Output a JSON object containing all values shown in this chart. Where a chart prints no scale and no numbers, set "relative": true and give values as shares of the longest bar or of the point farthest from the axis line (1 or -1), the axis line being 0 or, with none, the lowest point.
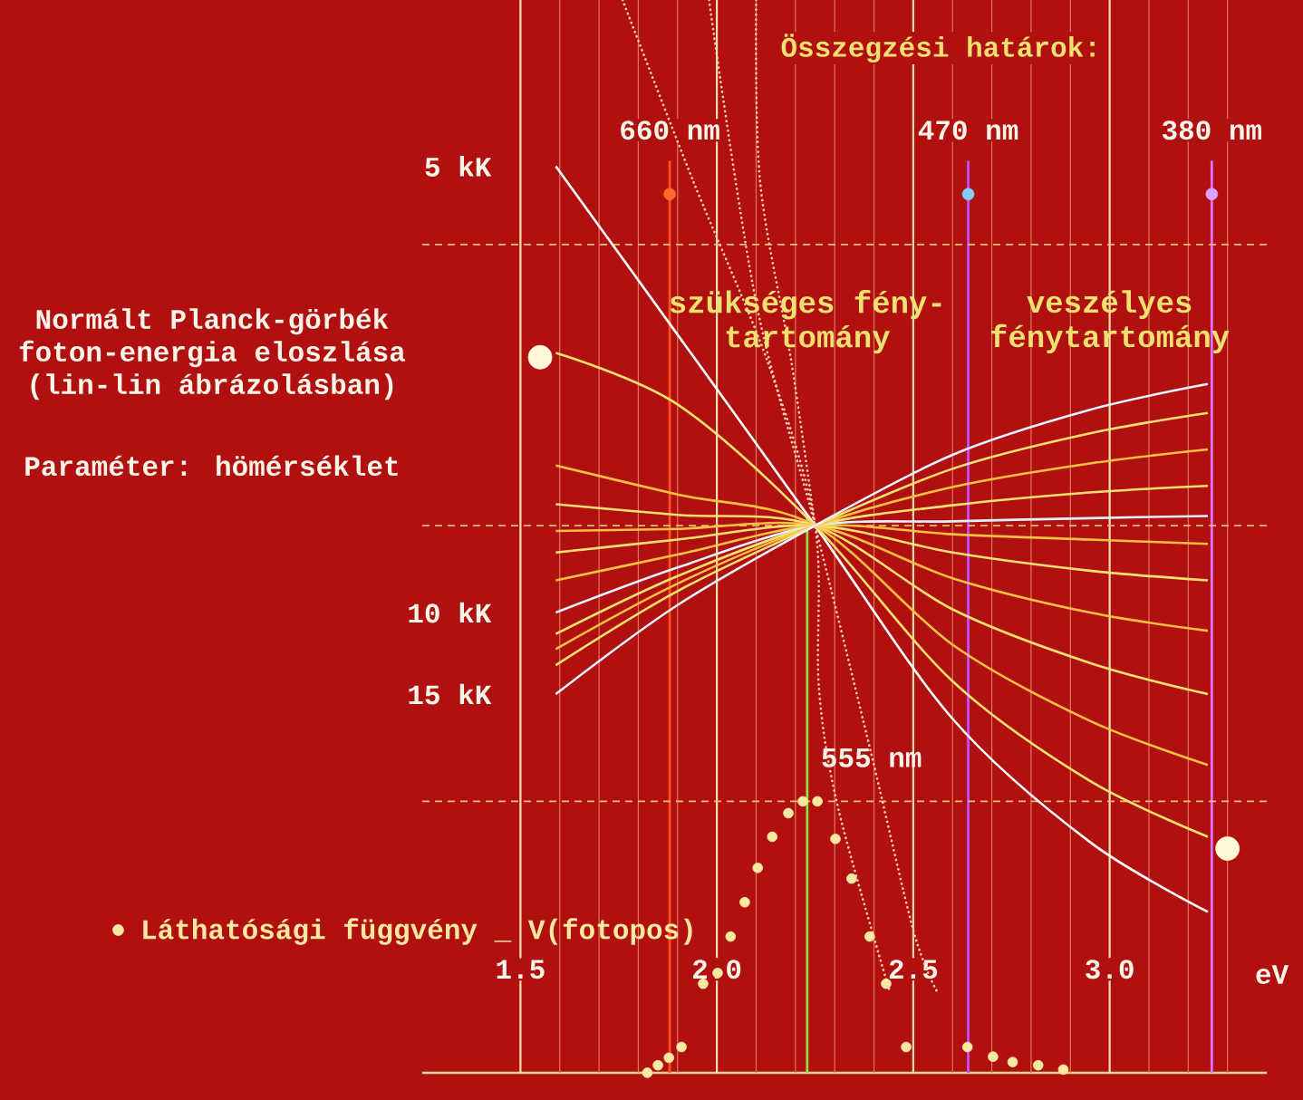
{
  "chart_data": {
    "type": "line",
    "title": "Normált Planck-görbék foton-energia eloszlása (lin-lin ábrázolásban)",
    "subtitle": "Paraméter: hömérséklet",
    "xlabel": "eV",
    "annotations": [
      "Összegzési határok:",
      "szükséges fény- tartomány",
      "veszélyes fénytartomány"
    ],
    "relative": true,
    "grid": "x",
    "xlim": [
      1.25,
      3.4
    ],
    "xticks": [
      1.5,
      {
        "value": 1.6,
        "label": null
      },
      {
        "value": 1.7,
        "label": null
      },
      {
        "value": 1.8,
        "label": null
      },
      {
        "value": 1.9,
        "label": null
      },
      {
        "value": 2,
        "label": "2.0"
      },
      {
        "value": 2.1,
        "label": null
      },
      {
        "value": 2.2,
        "label": null
      },
      {
        "value": 2.3,
        "label": null
      },
      {
        "value": 2.4,
        "label": null
      },
      2.5,
      {
        "value": 2.6,
        "label": null
      },
      {
        "value": 2.7,
        "label": null
      },
      {
        "value": 2.8,
        "label": null
      },
      {
        "value": 2.9,
        "label": null
      },
      {
        "value": 3,
        "label": "3.0"
      },
      {
        "value": 3.1,
        "label": null
      },
      {
        "value": 3.2,
        "label": null
      },
      {
        "value": 3.3,
        "label": null
      }
    ],
    "x": [
      1.59,
      1.9,
      2.25,
      2.6,
      2.95,
      3.25
    ],
    "series": [
      {
        "name": "5 kK",
        "color": "#ffffff",
        "values": [
          0.845,
          0.688,
          0.51,
          0.33,
          0.215,
          0.15
        ]
      },
      {
        "color": "#f8e070",
        "values": [
          0.671,
          0.623,
          0.51,
          0.365,
          0.272,
          0.22
        ]
      },
      {
        "color": "#f8c040",
        "values": [
          0.566,
          0.539,
          0.51,
          0.399,
          0.328,
          0.287
        ]
      },
      {
        "color": "#f8e070",
        "values": [
          0.53,
          0.52,
          0.51,
          0.432,
          0.382,
          0.353
        ]
      },
      {
        "color": "#f8c040",
        "values": [
          0.505,
          0.507,
          0.51,
          0.461,
          0.429,
          0.412
        ]
      },
      {
        "color": "#f8e070",
        "values": [
          0.485,
          0.497,
          0.51,
          0.485,
          0.468,
          0.459
        ]
      },
      {
        "color": "#f8c040",
        "values": [
          0.459,
          0.483,
          0.51,
          0.502,
          0.497,
          0.493
        ]
      },
      {
        "name": "10 kK",
        "color": "#e0f0ff",
        "values": [
          0.429,
          0.471,
          0.51,
          0.514,
          0.517,
          0.519
        ]
      },
      {
        "color": "#f8e070",
        "values": [
          0.409,
          0.463,
          0.51,
          0.529,
          0.541,
          0.547
        ]
      },
      {
        "color": "#f8c040",
        "values": [
          0.395,
          0.456,
          0.51,
          0.546,
          0.568,
          0.581
        ]
      },
      {
        "color": "#f8e070",
        "values": [
          0.38,
          0.449,
          0.51,
          0.563,
          0.596,
          0.615
        ]
      },
      {
        "name": "15 kK",
        "color": "#e8f4ff",
        "values": [
          0.353,
          0.436,
          0.51,
          0.576,
          0.618,
          0.642
        ]
      },
      {
        "color": "#ffd0b0",
        "line_style": "dotted",
        "x": [
          1.76,
          1.94,
          2.13,
          2.25,
          2.26,
          2.31,
          2.44
        ],
        "values": [
          1.0,
          0.831,
          0.662,
          0.51,
          0.358,
          0.245,
          0.076
        ]
      },
      {
        "color": "#ffd0b0",
        "line_style": "dotted",
        "x": [
          1.98,
          2.1,
          2.25,
          2.39,
          2.5,
          2.56
        ],
        "values": [
          1.0,
          0.718,
          0.51,
          0.302,
          0.133,
          0.076
        ]
      },
      {
        "color": "#ffd0b0",
        "line_style": "dotted",
        "x": [
          2.1,
          2.11,
          2.19,
          2.25
        ],
        "values": [
          1.0,
          0.831,
          0.662,
          0.51
        ]
      },
      {
        "type": "scatter",
        "marker": "circle",
        "name": "Láthatósági függvény _ V(fotopos)",
        "color": "#f8e8a0",
        "x": [
          1.823,
          1.85,
          1.878,
          1.91,
          1.965,
          2.002,
          2.035,
          2.071,
          2.104,
          2.141,
          2.182,
          2.219,
          2.256,
          2.302,
          2.343,
          2.389,
          2.431,
          2.482,
          2.638,
          2.703,
          2.753,
          2.818,
          2.882
        ],
        "values": [
          0.0,
          0.007,
          0.014,
          0.024,
          0.083,
          0.093,
          0.127,
          0.159,
          0.191,
          0.22,
          0.242,
          0.253,
          0.253,
          0.218,
          0.181,
          0.127,
          0.083,
          0.024,
          0.024,
          0.015,
          0.01,
          0.007,
          0.003
        ]
      },
      {
        "type": "scatter",
        "marker": "circle",
        "colors": [
          "#ff6a2a",
          "#80d0ff",
          "#e0a0ff"
        ],
        "x": [
          1.88,
          2.64,
          3.26
        ],
        "values": [
          0.819,
          0.819,
          0.819
        ]
      },
      {
        "type": "scatter",
        "marker": "circle",
        "color": "#fff8d8",
        "x": [
          1.55,
          3.3
        ],
        "values": [
          0.667,
          0.209
        ]
      }
    ],
    "ref_lines": [
      {
        "axis": "x",
        "value": 1.88,
        "label": "660 nm",
        "color": "#ff5020"
      },
      {
        "axis": "x",
        "value": 2.64,
        "label": "470 nm",
        "color": "#c050ff"
      },
      {
        "axis": "x",
        "value": 3.26,
        "label": "380 nm",
        "color": "#e070ff"
      },
      {
        "axis": "x",
        "value": 2.23,
        "label": "555 nm",
        "color": "#90e040"
      },
      {
        "axis": "y",
        "value": 0.772,
        "color": "#e8c070",
        "line_style": "dashed"
      },
      {
        "axis": "y",
        "value": 0.51,
        "color": "#e8c070",
        "line_style": "dashed"
      },
      {
        "axis": "y",
        "value": 0.253,
        "color": "#e8c070",
        "line_style": "dashed"
      }
    ]
  }
}
